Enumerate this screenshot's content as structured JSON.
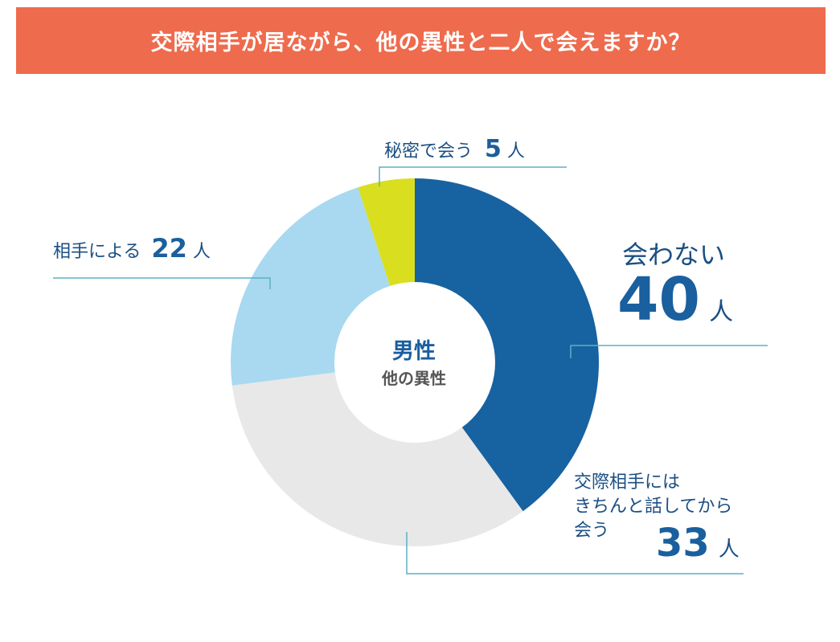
{
  "header": {
    "title": "交際相手が居ながら、他の異性と二人で会えますか？"
  },
  "center": {
    "main": "男性",
    "sub": "他の異性"
  },
  "chart_data": {
    "type": "pie",
    "title": "交際相手が居ながら、他の異性と二人で会えますか？",
    "unit": "人",
    "slices": [
      {
        "label": "会わない",
        "value": 40,
        "color": "#1762a1"
      },
      {
        "label": "交際相手にはきちんと話してから会う",
        "value": 33,
        "color": "#e8e8e8"
      },
      {
        "label": "相手による",
        "value": 22,
        "color": "#a8d9f0"
      },
      {
        "label": "秘密で会う",
        "value": 5,
        "color": "#d9df1f"
      }
    ],
    "leader_color": "#5bb1c3"
  },
  "labels": {
    "secret": {
      "text": "秘密で会う",
      "value": "5",
      "unit": "人"
    },
    "depends": {
      "text": "相手による",
      "value": "22",
      "unit": "人"
    },
    "no": {
      "text": "会わない",
      "value": "40",
      "unit": "人"
    },
    "tell": {
      "line1": "交際相手には",
      "line2": "きちんと話してから",
      "line3": "会う",
      "value": "33",
      "unit": "人"
    }
  }
}
